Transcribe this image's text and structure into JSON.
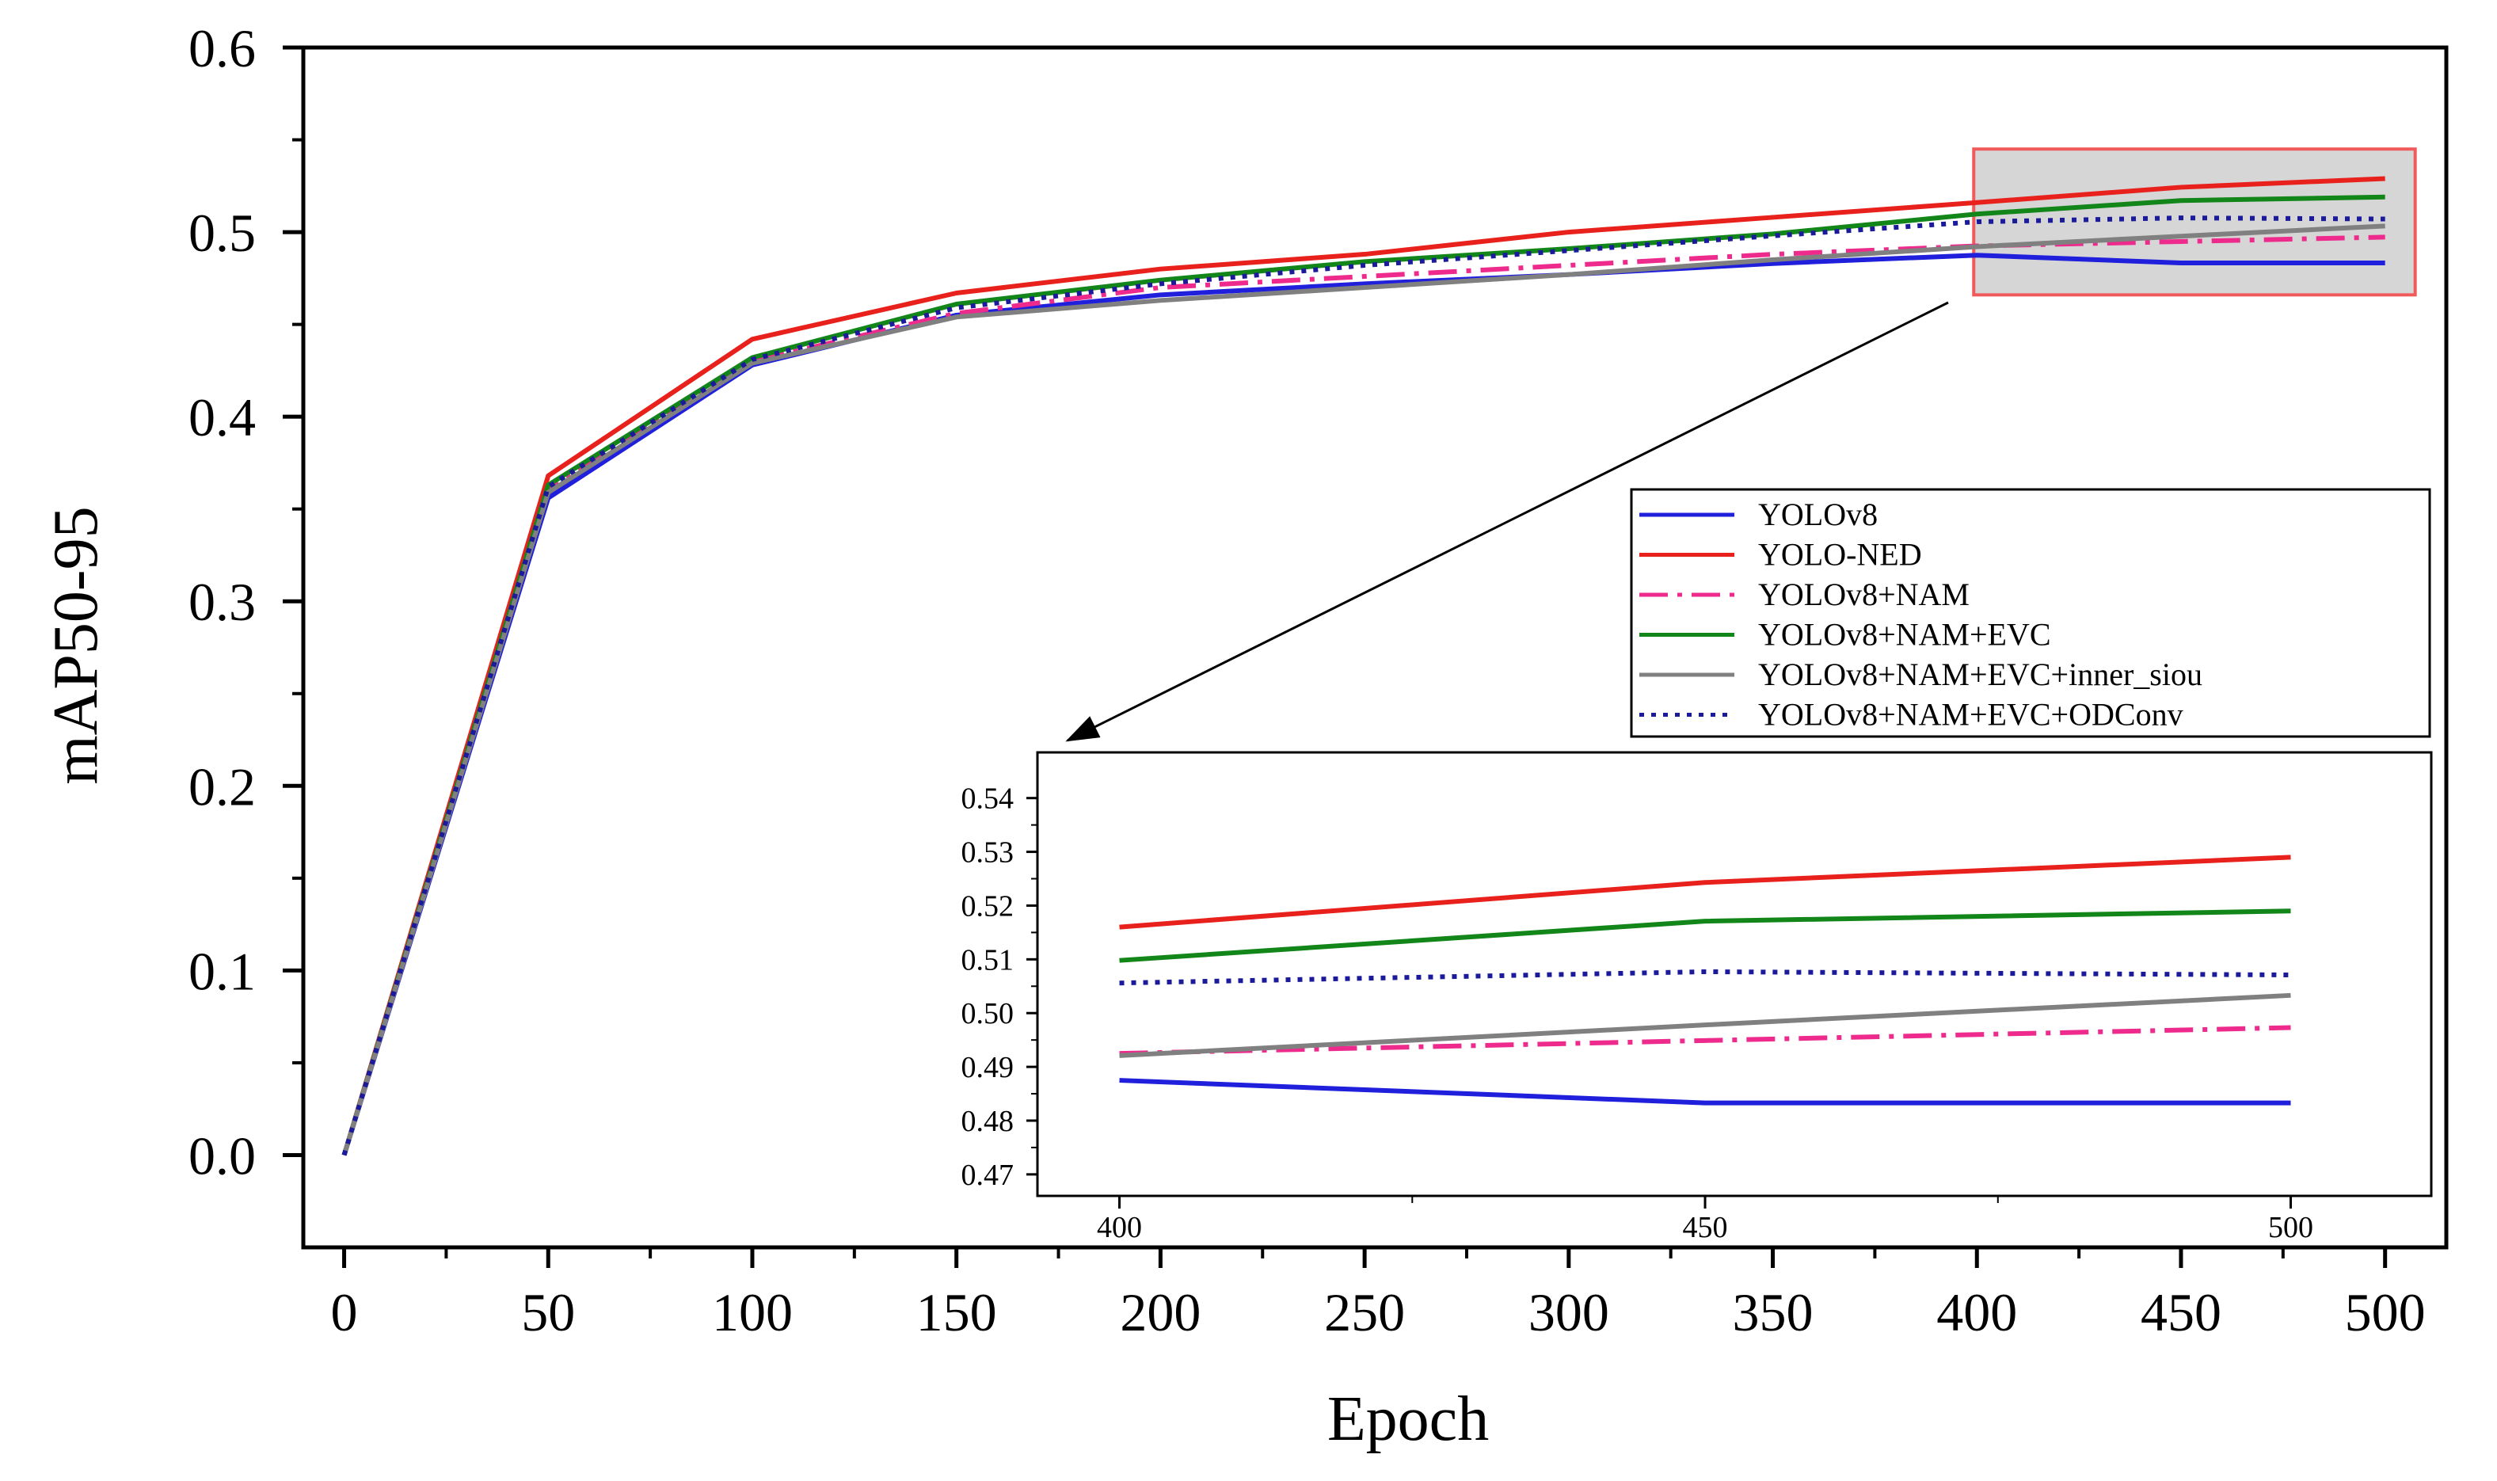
{
  "chart_data": {
    "type": "line",
    "xlabel": "Epoch",
    "ylabel": "mAP50-95",
    "xlim": [
      -10,
      515
    ],
    "ylim": [
      -0.05,
      0.6
    ],
    "xticks": [
      0,
      50,
      100,
      150,
      200,
      250,
      300,
      350,
      400,
      450,
      500
    ],
    "xtick_labels": [
      "0",
      "50",
      "100",
      "150",
      "200",
      "250",
      "300",
      "350",
      "400",
      "450",
      "500"
    ],
    "yticks": [
      0.0,
      0.1,
      0.2,
      0.3,
      0.4,
      0.5,
      0.6
    ],
    "ytick_labels": [
      "0.0",
      "0.1",
      "0.2",
      "0.3",
      "0.4",
      "0.5",
      "0.6"
    ],
    "x": [
      0,
      50,
      100,
      150,
      200,
      250,
      300,
      350,
      400,
      450,
      500
    ],
    "series": [
      {
        "name": "YOLOv8",
        "color": "#1f1fdc",
        "dash": "solid",
        "values": [
          0.0,
          0.356,
          0.428,
          0.455,
          0.466,
          0.472,
          0.477,
          0.483,
          0.4875,
          0.4833,
          0.4833
        ]
      },
      {
        "name": "YOLO-NED",
        "color": "#e8211d",
        "dash": "solid",
        "values": [
          0.0,
          0.368,
          0.442,
          0.467,
          0.48,
          0.488,
          0.5,
          0.508,
          0.516,
          0.5243,
          0.529
        ]
      },
      {
        "name": "YOLOv8+NAM",
        "color": "#ee2a8c",
        "dash": "dashdot",
        "values": [
          0.0,
          0.36,
          0.43,
          0.456,
          0.47,
          0.476,
          0.482,
          0.488,
          0.4925,
          0.4949,
          0.4973
        ]
      },
      {
        "name": "YOLOv8+NAM+EVC",
        "color": "#13861a",
        "dash": "solid",
        "values": [
          0.0,
          0.363,
          0.432,
          0.461,
          0.474,
          0.484,
          0.491,
          0.499,
          0.5098,
          0.5171,
          0.519
        ]
      },
      {
        "name": "YOLOv8+NAM+EVC+inner_siou",
        "color": "#808080",
        "dash": "solid",
        "values": [
          0.0,
          0.359,
          0.429,
          0.454,
          0.463,
          0.47,
          0.477,
          0.485,
          0.4921,
          0.4978,
          0.5033
        ]
      },
      {
        "name": "YOLOv8+NAM+EVC+ODConv",
        "color": "#1a1a9a",
        "dash": "dotted",
        "values": [
          0.0,
          0.362,
          0.431,
          0.459,
          0.472,
          0.482,
          0.49,
          0.498,
          0.5056,
          0.5077,
          0.5071
        ]
      }
    ],
    "legend_position": "right-middle",
    "zoom_box": {
      "x_range": [
        400,
        500
      ],
      "y_range": [
        0.466,
        0.545
      ]
    },
    "inset": {
      "xlim": [
        393,
        512
      ],
      "ylim": [
        0.466,
        0.5485
      ],
      "xticks": [
        400,
        450,
        500
      ],
      "xtick_labels": [
        "400",
        "450",
        "500"
      ],
      "yticks": [
        0.47,
        0.48,
        0.49,
        0.5,
        0.51,
        0.52,
        0.53,
        0.54
      ],
      "ytick_labels": [
        "0.47",
        "0.48",
        "0.49",
        "0.50",
        "0.51",
        "0.52",
        "0.53",
        "0.54"
      ],
      "x": [
        400,
        450,
        500
      ]
    }
  }
}
